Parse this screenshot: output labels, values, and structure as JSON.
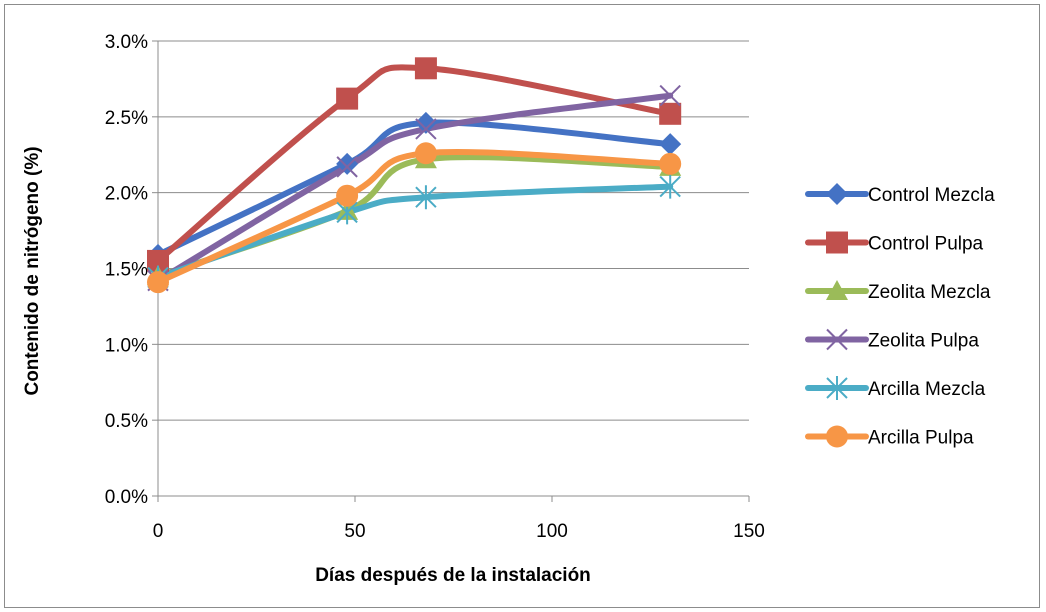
{
  "chart_data": {
    "type": "line",
    "xlabel": "Días después de la instalación",
    "ylabel": "Contenido de nitrógeno (%)",
    "xlim": [
      0,
      150
    ],
    "ylim": [
      0.0,
      3.0
    ],
    "xticks": [
      0,
      50,
      100,
      150
    ],
    "yticks": [
      0.0,
      0.5,
      1.0,
      1.5,
      2.0,
      2.5,
      3.0
    ],
    "xtick_labels": [
      "0",
      "50",
      "100",
      "150"
    ],
    "ytick_labels": [
      "0.0%",
      "0.5%",
      "1.0%",
      "1.5%",
      "2.0%",
      "2.5%",
      "3.0%"
    ],
    "grid": "horizontal",
    "legend_position": "right",
    "smooth": true,
    "x": [
      0,
      48,
      68,
      130
    ],
    "series": [
      {
        "name": "Control Mezcla",
        "values": [
          1.59,
          2.19,
          2.46,
          2.32
        ],
        "color": "#4472C4",
        "marker": "diamond"
      },
      {
        "name": "Control Pulpa",
        "values": [
          1.55,
          2.62,
          2.82,
          2.52
        ],
        "color": "#C0504D",
        "marker": "square"
      },
      {
        "name": "Zeolita Mezcla",
        "values": [
          1.45,
          1.88,
          2.22,
          2.17
        ],
        "color": "#9BBB59",
        "marker": "triangle"
      },
      {
        "name": "Zeolita Pulpa",
        "values": [
          1.42,
          2.17,
          2.42,
          2.64
        ],
        "color": "#8064A2",
        "marker": "x"
      },
      {
        "name": "Arcilla Mezcla",
        "values": [
          1.44,
          1.87,
          1.97,
          2.04
        ],
        "color": "#4BACC6",
        "marker": "star"
      },
      {
        "name": "Arcilla Pulpa",
        "values": [
          1.41,
          1.98,
          2.26,
          2.19
        ],
        "color": "#F79646",
        "marker": "circle"
      }
    ]
  }
}
